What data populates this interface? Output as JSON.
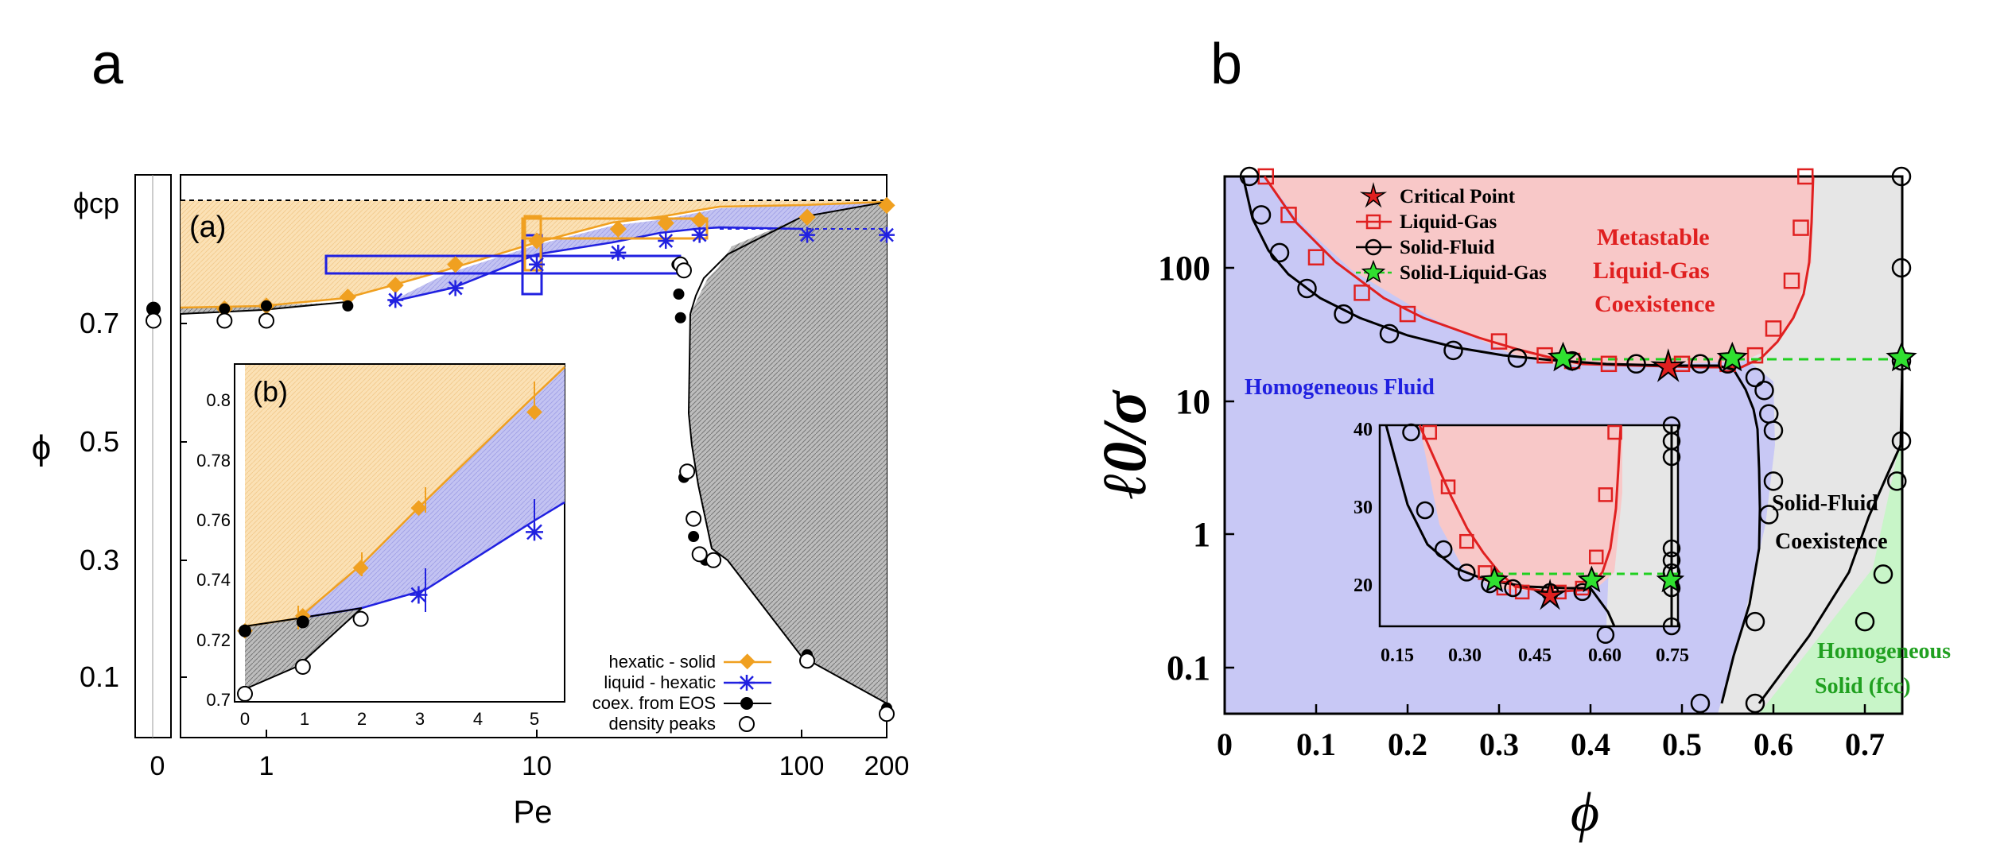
{
  "chart_data": [
    {
      "panel_label": "a",
      "type": "scatter",
      "xlabel": "Pe",
      "ylabel": "ϕ",
      "x_scale": "log",
      "x_ticks": [
        "0",
        "1",
        "10",
        "100",
        "200"
      ],
      "y_ticks": [
        "0.1",
        "0.3",
        "0.5",
        "0.7"
      ],
      "y_special_tick": "ϕcp",
      "ylim": [
        0,
        0.91
      ],
      "sublabel_main": "(a)",
      "legend_position": "bottom-right",
      "legend": [
        "hexatic - solid",
        "liquid - hexatic",
        "coex. from EOS",
        "density peaks"
      ],
      "series": [
        {
          "name": "hexatic - solid",
          "x": [
            0.7,
            1,
            2,
            3,
            5,
            10,
            20,
            30,
            40,
            100,
            200
          ],
          "y": [
            0.725,
            0.73,
            0.745,
            0.765,
            0.8,
            0.84,
            0.86,
            0.87,
            0.875,
            0.88,
            0.9
          ]
        },
        {
          "name": "liquid - hexatic",
          "x": [
            3,
            5,
            10,
            20,
            30,
            40,
            100,
            200
          ],
          "y": [
            0.74,
            0.76,
            0.8,
            0.82,
            0.84,
            0.85,
            0.85,
            0.85
          ]
        },
        {
          "name": "coex. from EOS",
          "x": [
            0.7,
            1,
            2,
            33,
            33.5,
            34,
            35,
            38,
            42,
            100,
            200
          ],
          "y": [
            0.725,
            0.73,
            0.73,
            0.8,
            0.75,
            0.71,
            0.44,
            0.34,
            0.3,
            0.14,
            0.05
          ]
        },
        {
          "name": "density peaks",
          "x": [
            0.7,
            1,
            34,
            35,
            36,
            38,
            40,
            45,
            100,
            200
          ],
          "y": [
            0.705,
            0.705,
            0.8,
            0.79,
            0.45,
            0.37,
            0.31,
            0.3,
            0.13,
            0.04
          ]
        }
      ],
      "inset": {
        "sublabel": "(b)",
        "x_ticks": [
          "0",
          "1",
          "2",
          "3",
          "4",
          "5"
        ],
        "y_ticks": [
          "0.7",
          "0.72",
          "0.74",
          "0.76",
          "0.78",
          "0.8"
        ],
        "series": [
          {
            "name": "hexatic - solid",
            "x": [
              0,
              1,
              2,
              3,
              5
            ],
            "y": [
              0.725,
              0.73,
              0.746,
              0.766,
              0.798
            ]
          },
          {
            "name": "liquid - hexatic",
            "x": [
              3,
              5
            ],
            "y": [
              0.737,
              0.758
            ]
          },
          {
            "name": "coex. from EOS",
            "x": [
              0,
              1,
              2
            ],
            "y": [
              0.725,
              0.728,
              0.729
            ]
          },
          {
            "name": "density peaks",
            "x": [
              0,
              1,
              2
            ],
            "y": [
              0.704,
              0.713,
              0.729
            ]
          }
        ]
      }
    },
    {
      "panel_label": "b",
      "type": "line",
      "xlabel": "ϕ",
      "ylabel": "ℓ0/σ",
      "y_scale": "log",
      "x_ticks": [
        "0",
        "0.1",
        "0.2",
        "0.3",
        "0.4",
        "0.5",
        "0.6",
        "0.7"
      ],
      "y_ticks": [
        "0.1",
        "1",
        "10",
        "100"
      ],
      "legend_position": "top-left",
      "legend": [
        "Critical Point",
        "Liquid-Gas",
        "Solid-Fluid",
        "Solid-Liquid-Gas"
      ],
      "region_labels": {
        "metastable": [
          "Metastable",
          "Liquid-Gas",
          "Coexistence"
        ],
        "homogeneous_fluid": "Homogeneous Fluid",
        "solid_fluid": [
          "Solid-Fluid",
          "Coexistence"
        ],
        "homogeneous_solid": [
          "Homogeneous",
          "Solid (fcc)"
        ]
      },
      "series": [
        {
          "name": "Liquid-Gas",
          "x": [
            0.045,
            0.07,
            0.1,
            0.15,
            0.2,
            0.3,
            0.35,
            0.38,
            0.42,
            0.5,
            0.55,
            0.58,
            0.6,
            0.62,
            0.63,
            0.635
          ],
          "y": [
            500,
            250,
            120,
            65,
            45,
            28,
            22,
            20,
            19,
            19,
            19,
            22,
            35,
            80,
            200,
            500
          ]
        },
        {
          "name": "Solid-Fluid",
          "x": [
            0.027,
            0.04,
            0.06,
            0.09,
            0.13,
            0.18,
            0.25,
            0.32,
            0.38,
            0.45,
            0.52,
            0.55,
            0.58,
            0.59,
            0.595,
            0.6,
            0.6,
            0.595,
            0.58,
            0.52
          ],
          "y": [
            500,
            250,
            130,
            70,
            45,
            32,
            24,
            21,
            20,
            19,
            19,
            19,
            15,
            12,
            8,
            6,
            2.5,
            1.4,
            0.22,
            0.05
          ]
        },
        {
          "name": "Solid-Fluid",
          "x": [
            0.58,
            0.7,
            0.72,
            0.735,
            0.74,
            0.74,
            0.74,
            0.74
          ],
          "y": [
            0.05,
            0.22,
            0.5,
            2.5,
            5,
            20,
            100,
            500
          ]
        },
        {
          "name": "Critical Point",
          "x": [
            0.485
          ],
          "y": [
            18
          ]
        },
        {
          "name": "Solid-Liquid-Gas",
          "x": [
            0.37,
            0.555,
            0.74
          ],
          "y": [
            21,
            21,
            21
          ]
        }
      ],
      "inset": {
        "x_ticks": [
          "0.15",
          "0.30",
          "0.45",
          "0.60",
          "0.75"
        ],
        "y_ticks": [
          "20",
          "30",
          "40"
        ],
        "series": [
          {
            "name": "Liquid-Gas",
            "x": [
              0.22,
              0.26,
              0.3,
              0.34,
              0.38,
              0.42,
              0.5,
              0.55,
              0.58,
              0.6,
              0.62
            ],
            "y": [
              40,
              33,
              26,
              22,
              20,
              19.5,
              19.5,
              20,
              24,
              32,
              40
            ]
          },
          {
            "name": "Solid-Fluid",
            "x": [
              0.18,
              0.21,
              0.25,
              0.3,
              0.35,
              0.4,
              0.48,
              0.55,
              0.6
            ],
            "y": [
              40,
              30,
              25,
              22,
              20.5,
              20,
              19.5,
              19.5,
              14
            ]
          },
          {
            "name": "Critical Point",
            "x": [
              0.48
            ],
            "y": [
              19
            ]
          },
          {
            "name": "Solid-Liquid-Gas",
            "x": [
              0.36,
              0.57,
              0.74
            ],
            "y": [
              21,
              21,
              21
            ]
          }
        ]
      }
    }
  ]
}
